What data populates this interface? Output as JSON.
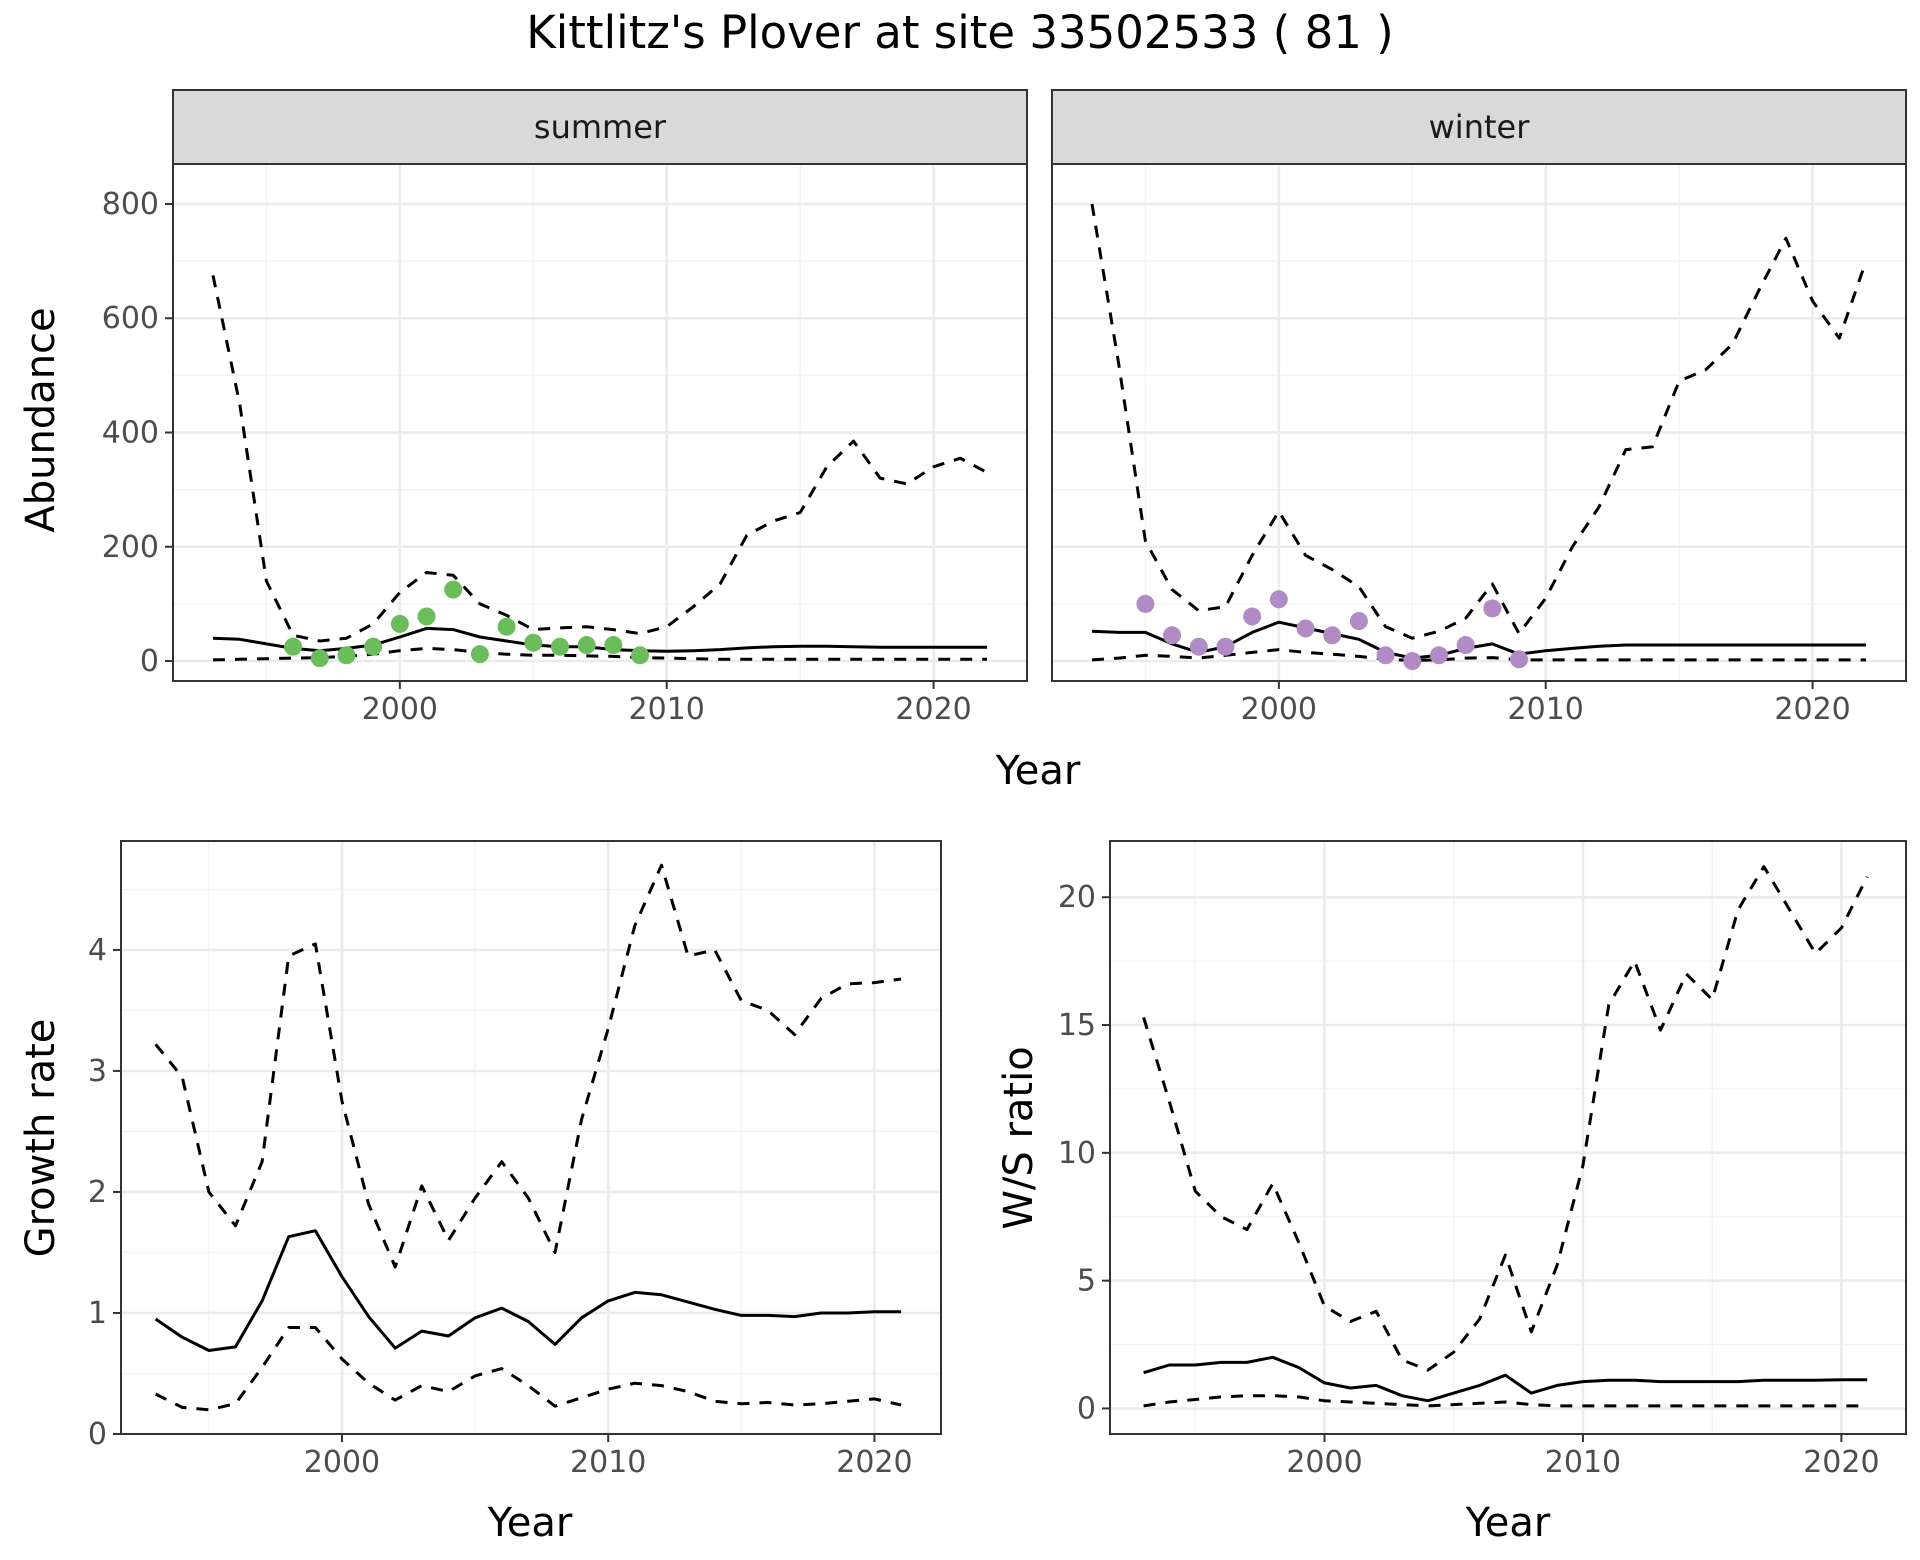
{
  "title": "Kittlitz's Plover at site 33502533 ( 81 )",
  "colors": {
    "summer_points": "#6abd5a",
    "winter_points": "#b08bc6",
    "lines": "#000000"
  },
  "chart_data": [
    {
      "type": "line",
      "facet": "summer",
      "xlabel": "Year",
      "ylabel": "Abundance",
      "xlim": [
        1991.5,
        2023.5
      ],
      "ylim": [
        -35,
        870
      ],
      "xticks": [
        2000,
        2010,
        2020
      ],
      "yticks": [
        0,
        200,
        400,
        600,
        800
      ],
      "grid": true,
      "series": [
        {
          "style": "solid",
          "x": [
            1993,
            1994,
            1995,
            1996,
            1997,
            1998,
            1999,
            2000,
            2001,
            2002,
            2003,
            2004,
            2005,
            2006,
            2007,
            2008,
            2009,
            2010,
            2011,
            2012,
            2013,
            2014,
            2015,
            2016,
            2017,
            2018,
            2019,
            2020,
            2021,
            2022
          ],
          "y": [
            40,
            38,
            30,
            22,
            18,
            22,
            28,
            42,
            57,
            55,
            42,
            35,
            28,
            25,
            25,
            20,
            18,
            17,
            18,
            20,
            23,
            25,
            26,
            26,
            25,
            24,
            24,
            24,
            24,
            24
          ]
        },
        {
          "style": "dashed",
          "x": [
            1993,
            1994,
            1995,
            1996,
            1997,
            1998,
            1999,
            2000,
            2001,
            2002,
            2003,
            2004,
            2005,
            2006,
            2007,
            2008,
            2009,
            2010,
            2011,
            2012,
            2013,
            2014,
            2015,
            2016,
            2017,
            2018,
            2019,
            2020,
            2021,
            2022
          ],
          "y": [
            675,
            450,
            140,
            45,
            35,
            40,
            65,
            120,
            155,
            150,
            100,
            80,
            55,
            58,
            60,
            55,
            48,
            60,
            95,
            135,
            220,
            245,
            260,
            340,
            385,
            320,
            310,
            340,
            355,
            330
          ]
        },
        {
          "style": "dashed",
          "x": [
            1993,
            1994,
            1995,
            1996,
            1997,
            1998,
            1999,
            2000,
            2001,
            2002,
            2003,
            2004,
            2005,
            2006,
            2007,
            2008,
            2009,
            2010,
            2011,
            2012,
            2013,
            2014,
            2015,
            2016,
            2017,
            2018,
            2019,
            2020,
            2021,
            2022
          ],
          "y": [
            2,
            3,
            4,
            5,
            6,
            8,
            12,
            18,
            22,
            20,
            15,
            12,
            10,
            10,
            9,
            8,
            6,
            5,
            4,
            3,
            3,
            3,
            3,
            3,
            3,
            3,
            3,
            3,
            3,
            3
          ]
        },
        {
          "style": "points",
          "x": [
            1996,
            1997,
            1998,
            1999,
            2000,
            2001,
            2002,
            2003,
            2004,
            2005,
            2006,
            2007,
            2008,
            2009
          ],
          "y": [
            25,
            5,
            10,
            25,
            65,
            78,
            125,
            12,
            60,
            32,
            25,
            28,
            28,
            10
          ]
        }
      ]
    },
    {
      "type": "line",
      "facet": "winter",
      "xlabel": "Year",
      "ylabel": "Abundance",
      "xlim": [
        1991.5,
        2023.5
      ],
      "ylim": [
        -35,
        870
      ],
      "xticks": [
        2000,
        2010,
        2020
      ],
      "yticks": [
        0,
        200,
        400,
        600,
        800
      ],
      "grid": true,
      "series": [
        {
          "style": "solid",
          "x": [
            1993,
            1994,
            1995,
            1996,
            1997,
            1998,
            1999,
            2000,
            2001,
            2002,
            2003,
            2004,
            2005,
            2006,
            2007,
            2008,
            2009,
            2010,
            2011,
            2012,
            2013,
            2014,
            2015,
            2016,
            2017,
            2018,
            2019,
            2020,
            2021,
            2022
          ],
          "y": [
            52,
            50,
            50,
            30,
            15,
            25,
            50,
            68,
            58,
            48,
            38,
            15,
            5,
            10,
            22,
            30,
            12,
            18,
            22,
            26,
            28,
            28,
            28,
            28,
            28,
            28,
            28,
            28,
            28,
            28
          ]
        },
        {
          "style": "dashed",
          "x": [
            1993,
            1994,
            1995,
            1996,
            1997,
            1998,
            1999,
            2000,
            2001,
            2002,
            2003,
            2004,
            2005,
            2006,
            2007,
            2008,
            2009,
            2010,
            2011,
            2012,
            2013,
            2014,
            2015,
            2016,
            2017,
            2018,
            2019,
            2020,
            2021,
            2022
          ],
          "y": [
            800,
            520,
            210,
            125,
            88,
            95,
            185,
            262,
            185,
            160,
            130,
            60,
            40,
            52,
            75,
            135,
            48,
            110,
            200,
            270,
            370,
            375,
            490,
            510,
            555,
            650,
            740,
            630,
            565,
            700
          ]
        },
        {
          "style": "dashed",
          "x": [
            1993,
            1994,
            1995,
            1996,
            1997,
            1998,
            1999,
            2000,
            2001,
            2002,
            2003,
            2004,
            2005,
            2006,
            2007,
            2008,
            2009,
            2010,
            2011,
            2012,
            2013,
            2014,
            2015,
            2016,
            2017,
            2018,
            2019,
            2020,
            2021,
            2022
          ],
          "y": [
            2,
            5,
            10,
            8,
            5,
            10,
            15,
            20,
            15,
            12,
            8,
            3,
            1,
            2,
            5,
            6,
            2,
            2,
            2,
            2,
            2,
            2,
            2,
            2,
            2,
            2,
            2,
            2,
            2,
            2
          ]
        },
        {
          "style": "points",
          "x": [
            1995,
            1996,
            1997,
            1998,
            1999,
            2000,
            2001,
            2002,
            2003,
            2004,
            2005,
            2006,
            2007,
            2008,
            2009
          ],
          "y": [
            100,
            45,
            25,
            25,
            78,
            108,
            57,
            45,
            70,
            10,
            0,
            10,
            28,
            92,
            3
          ]
        }
      ]
    },
    {
      "type": "line",
      "xlabel": "Year",
      "ylabel": "Growth rate",
      "xlim": [
        1991.7,
        2022.5
      ],
      "ylim": [
        0,
        4.9
      ],
      "xticks": [
        2000,
        2010,
        2020
      ],
      "yticks": [
        0,
        1,
        2,
        3,
        4
      ],
      "grid": true,
      "series": [
        {
          "style": "solid",
          "x": [
            1993,
            1994,
            1995,
            1996,
            1997,
            1998,
            1999,
            2000,
            2001,
            2002,
            2003,
            2004,
            2005,
            2006,
            2007,
            2008,
            2009,
            2010,
            2011,
            2012,
            2013,
            2014,
            2015,
            2016,
            2017,
            2018,
            2019,
            2020,
            2021
          ],
          "y": [
            0.95,
            0.8,
            0.69,
            0.72,
            1.1,
            1.63,
            1.68,
            1.3,
            0.97,
            0.71,
            0.85,
            0.81,
            0.96,
            1.04,
            0.93,
            0.74,
            0.96,
            1.1,
            1.17,
            1.15,
            1.09,
            1.03,
            0.98,
            0.98,
            0.97,
            1.0,
            1.0,
            1.01,
            1.01
          ]
        },
        {
          "style": "dashed",
          "x": [
            1993,
            1994,
            1995,
            1996,
            1997,
            1998,
            1999,
            2000,
            2001,
            2002,
            2003,
            2004,
            2005,
            2006,
            2007,
            2008,
            2009,
            2010,
            2011,
            2012,
            2013,
            2014,
            2015,
            2016,
            2017,
            2018,
            2019,
            2020,
            2021
          ],
          "y": [
            3.22,
            2.95,
            2.0,
            1.72,
            2.25,
            3.95,
            4.05,
            2.75,
            1.9,
            1.38,
            2.05,
            1.6,
            1.95,
            2.25,
            1.95,
            1.5,
            2.6,
            3.35,
            4.2,
            4.7,
            3.95,
            4.0,
            3.58,
            3.5,
            3.3,
            3.6,
            3.72,
            3.73,
            3.76
          ]
        },
        {
          "style": "dashed",
          "x": [
            1993,
            1994,
            1995,
            1996,
            1997,
            1998,
            1999,
            2000,
            2001,
            2002,
            2003,
            2004,
            2005,
            2006,
            2007,
            2008,
            2009,
            2010,
            2011,
            2012,
            2013,
            2014,
            2015,
            2016,
            2017,
            2018,
            2019,
            2020,
            2021
          ],
          "y": [
            0.33,
            0.22,
            0.2,
            0.25,
            0.55,
            0.88,
            0.88,
            0.62,
            0.42,
            0.28,
            0.4,
            0.35,
            0.48,
            0.54,
            0.4,
            0.23,
            0.3,
            0.37,
            0.42,
            0.4,
            0.35,
            0.27,
            0.25,
            0.26,
            0.24,
            0.25,
            0.27,
            0.29,
            0.24
          ]
        }
      ]
    },
    {
      "type": "line",
      "xlabel": "Year",
      "ylabel": "W/S ratio",
      "xlim": [
        1991.7,
        2022.5
      ],
      "ylim": [
        -1.0,
        22.2
      ],
      "xticks": [
        2000,
        2010,
        2020
      ],
      "yticks": [
        0,
        5,
        10,
        15,
        20
      ],
      "grid": true,
      "series": [
        {
          "style": "solid",
          "x": [
            1993,
            1994,
            1995,
            1996,
            1997,
            1998,
            1999,
            2000,
            2001,
            2002,
            2003,
            2004,
            2005,
            2006,
            2007,
            2008,
            2009,
            2010,
            2011,
            2012,
            2013,
            2014,
            2015,
            2016,
            2017,
            2018,
            2019,
            2020,
            2021
          ],
          "y": [
            1.4,
            1.7,
            1.7,
            1.8,
            1.8,
            2.0,
            1.6,
            1.0,
            0.8,
            0.9,
            0.5,
            0.3,
            0.6,
            0.9,
            1.3,
            0.6,
            0.9,
            1.05,
            1.1,
            1.1,
            1.05,
            1.05,
            1.05,
            1.05,
            1.1,
            1.1,
            1.1,
            1.12,
            1.12
          ]
        },
        {
          "style": "dashed",
          "x": [
            1993,
            1994,
            1995,
            1996,
            1997,
            1998,
            1999,
            2000,
            2001,
            2002,
            2003,
            2004,
            2005,
            2006,
            2007,
            2008,
            2009,
            2010,
            2011,
            2012,
            2013,
            2014,
            2015,
            2016,
            2017,
            2018,
            2019,
            2020,
            2021
          ],
          "y": [
            15.3,
            12.0,
            8.5,
            7.5,
            7.0,
            8.8,
            6.5,
            4.0,
            3.4,
            3.8,
            1.9,
            1.5,
            2.2,
            3.5,
            6.0,
            3.0,
            5.6,
            9.5,
            15.8,
            17.5,
            14.8,
            17.0,
            16.0,
            19.5,
            21.2,
            19.5,
            17.8,
            18.8,
            20.8
          ]
        },
        {
          "style": "dashed",
          "x": [
            1993,
            1994,
            1995,
            1996,
            1997,
            1998,
            1999,
            2000,
            2001,
            2002,
            2003,
            2004,
            2005,
            2006,
            2007,
            2008,
            2009,
            2010,
            2011,
            2012,
            2013,
            2014,
            2015,
            2016,
            2017,
            2018,
            2019,
            2020,
            2021
          ],
          "y": [
            0.1,
            0.25,
            0.35,
            0.45,
            0.5,
            0.5,
            0.45,
            0.3,
            0.25,
            0.2,
            0.15,
            0.1,
            0.15,
            0.2,
            0.25,
            0.15,
            0.1,
            0.1,
            0.1,
            0.1,
            0.1,
            0.1,
            0.1,
            0.1,
            0.1,
            0.1,
            0.1,
            0.1,
            0.1
          ]
        }
      ]
    }
  ]
}
